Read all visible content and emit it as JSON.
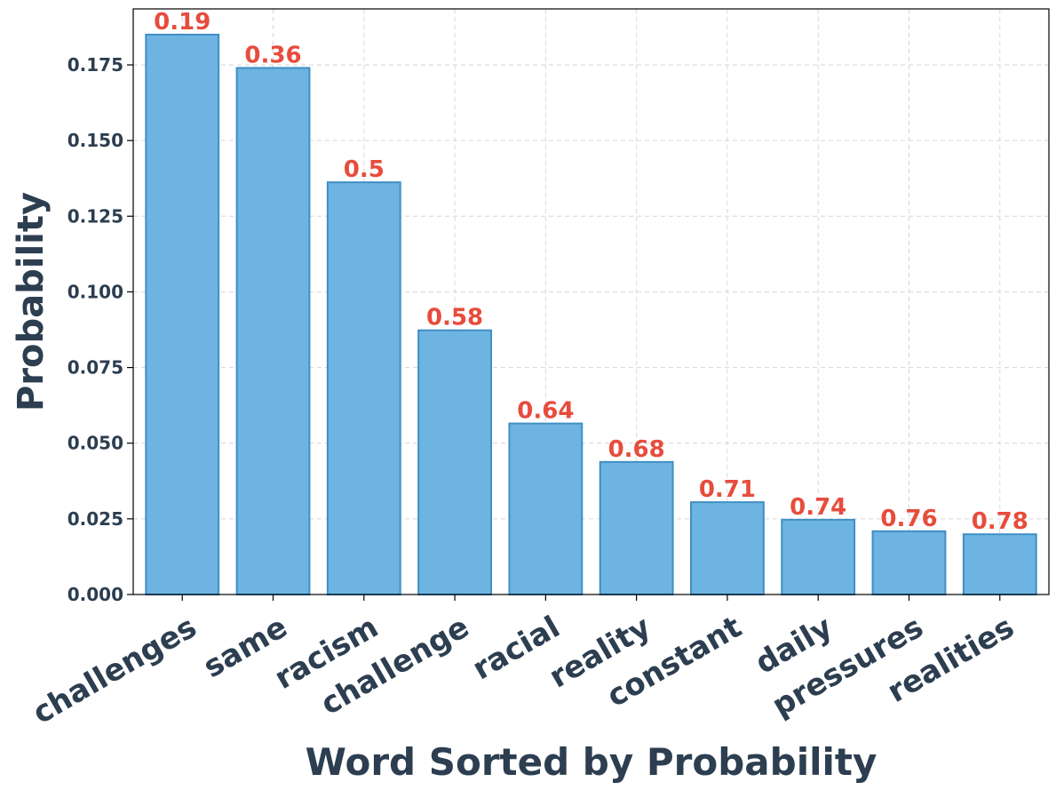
{
  "chart_data": {
    "type": "bar",
    "title": "",
    "xlabel": "Word Sorted by Probability",
    "ylabel": "Probability",
    "categories": [
      "challenges",
      "same",
      "racism",
      "challenge",
      "racial",
      "reality",
      "constant",
      "daily",
      "pressures",
      "realities"
    ],
    "values": [
      0.185,
      0.174,
      0.1362,
      0.0873,
      0.0565,
      0.0438,
      0.0305,
      0.0247,
      0.0209,
      0.0199
    ],
    "bar_labels": [
      "0.19",
      "0.36",
      "0.5",
      "0.58",
      "0.64",
      "0.68",
      "0.71",
      "0.74",
      "0.76",
      "0.78"
    ],
    "ylim": [
      0,
      0.1935
    ],
    "yticks": [
      0.0,
      0.025,
      0.05,
      0.075,
      0.1,
      0.125,
      0.15,
      0.175
    ],
    "ytick_labels": [
      "0.000",
      "0.025",
      "0.050",
      "0.075",
      "0.100",
      "0.125",
      "0.150",
      "0.175"
    ],
    "grid": true,
    "colors": {
      "bar_fill": "#6eb4e2",
      "bar_edge": "#3f8fc4",
      "bar_label": "#e74c3c",
      "text": "#2c3e50",
      "grid": "#d6d6d6",
      "axes": "#000000"
    }
  }
}
